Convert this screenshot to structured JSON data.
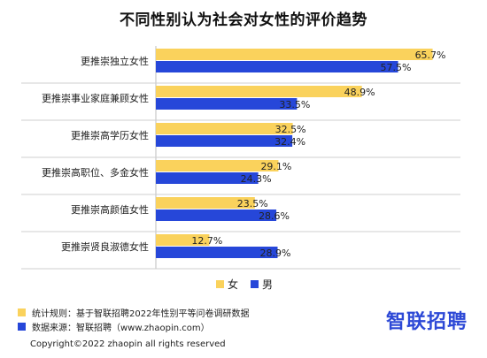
{
  "title": "不同性别认为社会对女性的评价趋势",
  "colors": {
    "female": "#FAD25C",
    "male": "#2647D9",
    "grid": "#cfcfcf"
  },
  "chart_data": {
    "type": "bar",
    "orientation": "horizontal",
    "title": "不同性别认为社会对女性的评价趋势",
    "categories": [
      "更推崇独立女性",
      "更推崇事业家庭兼顾女性",
      "更推崇高学历女性",
      "更推崇高职位、多金女性",
      "更推崇高颜值女性",
      "更推崇贤良淑德女性"
    ],
    "series": [
      {
        "name": "女",
        "values": [
          65.7,
          48.9,
          32.5,
          29.1,
          23.5,
          12.7
        ]
      },
      {
        "name": "男",
        "values": [
          57.5,
          33.5,
          32.4,
          24.3,
          28.6,
          28.9
        ]
      }
    ],
    "value_labels": {
      "女": [
        "65.7%",
        "48.9%",
        "32.5%",
        "29.1%",
        "23.5%",
        "12.7%"
      ],
      "男": [
        "57.5%",
        "33.5%",
        "32.4%",
        "24.3%",
        "28.6%",
        "28.9%"
      ]
    },
    "xlim": [
      0,
      66
    ],
    "legend_position": "bottom-center",
    "grid": false
  },
  "legend": {
    "female": "女",
    "male": "男"
  },
  "notes": {
    "rule": "统计规则：基于智联招聘2022年性别平等问卷调研数据",
    "source": "数据来源：智联招聘（www.zhaopin.com）"
  },
  "brand": "智联招聘",
  "copyright": "Copyright©2022 zhaopin all rights reserved"
}
